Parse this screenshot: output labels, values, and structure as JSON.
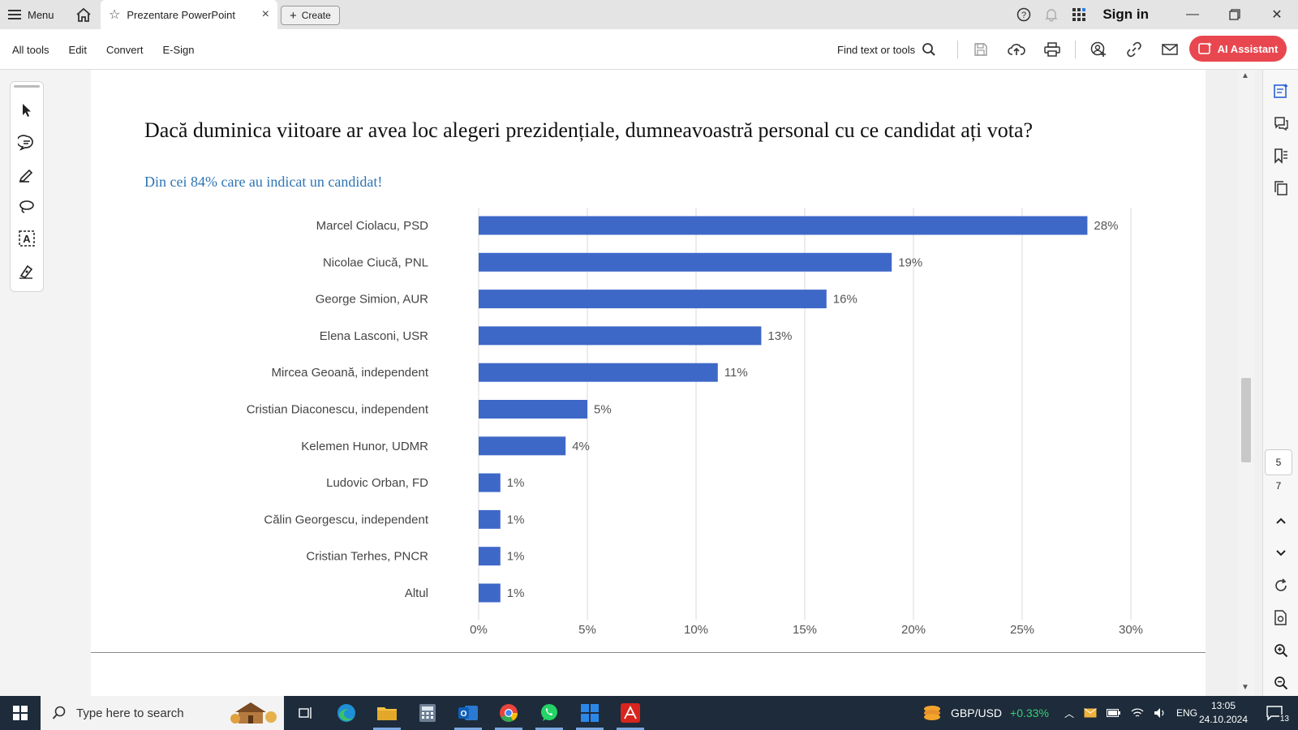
{
  "titlebar": {
    "menu_label": "Menu",
    "tab_title": "Prezentare PowerPoint",
    "tab_close": "×",
    "create_label": "Create",
    "signin_label": "Sign in"
  },
  "toolbar": {
    "menu_items": [
      "All tools",
      "Edit",
      "Convert",
      "E-Sign"
    ],
    "find_label": "Find text or tools",
    "ai_label": "AI Assistant",
    "ai_color": "#e8474f"
  },
  "document": {
    "title": "Dacă duminica viitoare ar avea loc alegeri prezidențiale, dumneavoastră personal cu ce candidat ați vota?",
    "subtitle": "Din cei 84% care au indicat un candidat!"
  },
  "chart_data": {
    "type": "bar",
    "orientation": "horizontal",
    "title": "Dacă duminica viitoare ar avea loc alegeri prezidențiale, dumneavoastră personal cu ce candidat ați vota?",
    "subtitle": "Din cei 84% care au indicat un candidat!",
    "categories": [
      "Marcel Ciolacu, PSD",
      "Nicolae Ciucă, PNL",
      "George Simion, AUR",
      "Elena Lasconi, USR",
      "Mircea Geoană, independent",
      "Cristian Diaconescu, independent",
      "Kelemen Hunor, UDMR",
      "Ludovic Orban, FD",
      "Călin Georgescu, independent",
      "Cristian Terhes, PNCR",
      "Altul"
    ],
    "values": [
      28,
      19,
      16,
      13,
      11,
      5,
      4,
      1,
      1,
      1,
      1
    ],
    "value_labels": [
      "28%",
      "19%",
      "16%",
      "13%",
      "11%",
      "5%",
      "4%",
      "1%",
      "1%",
      "1%",
      "1%"
    ],
    "xlim": [
      0,
      30
    ],
    "xticks": [
      "0%",
      "5%",
      "10%",
      "15%",
      "20%",
      "25%",
      "30%"
    ],
    "xtick_values": [
      0,
      5,
      10,
      15,
      20,
      25,
      30
    ],
    "grid": true,
    "bar_color": "#3e68c8"
  },
  "pagination": {
    "current_page": "5",
    "total_pages": "7"
  },
  "taskbar": {
    "search_placeholder": "Type here to search",
    "fx_pair": "GBP/USD",
    "fx_change": "+0.33%",
    "language": "ENG",
    "time": "13:05",
    "date": "24.10.2024",
    "notification_count": "13"
  }
}
